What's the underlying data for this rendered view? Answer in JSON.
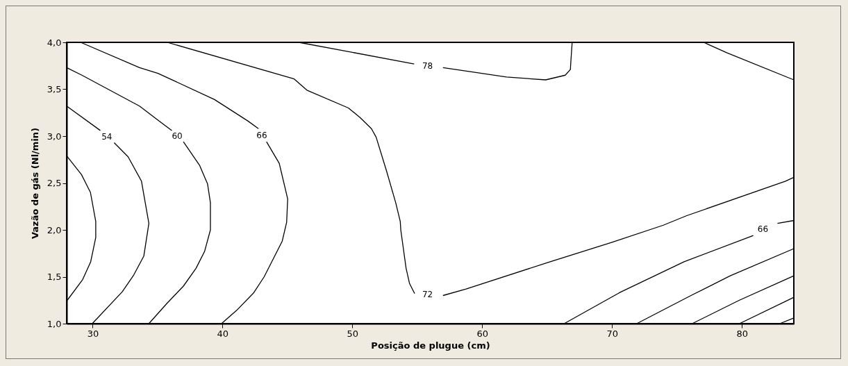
{
  "chart_data": {
    "type": "line",
    "xlabel": "Posição de plugue (cm)",
    "ylabel": "Vazão de gás (Nl/min)",
    "xlim": [
      28,
      84
    ],
    "ylim": [
      1,
      4
    ],
    "xticks": [
      30,
      40,
      50,
      60,
      70,
      80
    ],
    "yticks": [
      {
        "value": 1,
        "label": "1,0"
      },
      {
        "value": 1.5,
        "label": "1,5"
      },
      {
        "value": 2,
        "label": "2,0"
      },
      {
        "value": 2.5,
        "label": "2,5"
      },
      {
        "value": 3,
        "label": "3,0"
      },
      {
        "value": 3.5,
        "label": "3,5"
      },
      {
        "value": 4,
        "label": "4,0"
      }
    ],
    "grid": false,
    "marker": "none",
    "line_style": "solid",
    "series": [
      {
        "color": "#000000",
        "x": [
          28,
          29.14,
          29.83,
          30.24,
          30.24,
          29.85,
          29.23,
          28.05
        ],
        "values": [
          2.79,
          2.59,
          2.4,
          2.09,
          1.92,
          1.66,
          1.47,
          1.25
        ]
      },
      {
        "name": "54",
        "color": "#000000",
        "x": [
          28,
          30.59,
          31.09,
          31.66,
          32.73,
          33.76,
          34.33,
          33.94,
          33.17,
          32.28,
          29.97
        ],
        "values": [
          3.32,
          3.06,
          null,
          2.93,
          2.78,
          2.52,
          2.07,
          1.72,
          1.52,
          1.34,
          1.0
        ]
      },
      {
        "name": "60",
        "color": "#000000",
        "x": [
          28,
          29.17,
          33.61,
          35.03,
          36.1,
          36.51,
          36.99,
          38.23,
          38.85,
          39.07,
          39.07,
          38.62,
          37.96,
          36.99,
          35.75,
          34.33
        ],
        "values": [
          3.73,
          3.65,
          3.32,
          3.17,
          3.06,
          null,
          2.94,
          2.69,
          2.49,
          2.29,
          2.0,
          1.77,
          1.59,
          1.4,
          1.22,
          1.0
        ]
      },
      {
        "name": "66",
        "color": "#000000",
        "x": [
          29.08,
          33.61,
          35.03,
          39.39,
          41.97,
          42.77,
          43.03,
          43.39,
          44.37,
          45.02,
          44.94,
          44.6,
          43.21,
          42.41,
          41.08,
          39.92
        ],
        "values": [
          4.0,
          3.73,
          3.67,
          3.39,
          3.16,
          3.08,
          null,
          2.94,
          2.71,
          2.33,
          2.08,
          1.88,
          1.5,
          1.33,
          1.14,
          1.0
        ]
      },
      {
        "name": "72",
        "color": "#000000",
        "x": [
          35.75,
          45.52,
          46.5,
          49.7,
          50.58,
          51.47,
          51.83,
          52.63,
          53.34,
          53.69,
          53.73,
          54.14,
          54.4,
          54.8,
          55.79,
          56.98,
          58.76,
          65.24,
          70.04,
          73.95,
          75.72,
          83.36,
          84
        ],
        "values": [
          4.0,
          3.61,
          3.49,
          3.3,
          3.2,
          3.08,
          2.99,
          2.63,
          2.29,
          2.09,
          2.0,
          1.59,
          1.43,
          1.32,
          null,
          1.3,
          1.37,
          1.66,
          1.87,
          2.05,
          2.15,
          2.52,
          2.56
        ]
      },
      {
        "name": "78",
        "color": "#000000",
        "x": [
          45.88,
          54.76,
          55.79,
          56.98,
          61.87,
          64.89,
          66.4,
          66.79,
          66.84,
          66.93
        ],
        "values": [
          4.0,
          3.77,
          null,
          3.73,
          3.63,
          3.6,
          3.65,
          3.71,
          3.82,
          4.0
        ]
      },
      {
        "color": "#000000",
        "x": [
          77.06,
          78.83,
          84
        ],
        "values": [
          4.0,
          3.89,
          3.6
        ]
      },
      {
        "name": "66",
        "color": "#000000",
        "x": [
          66.31,
          70.57,
          75.55,
          80.88,
          81.62,
          82.74,
          84
        ],
        "values": [
          1.0,
          1.33,
          1.66,
          1.94,
          null,
          2.07,
          2.1
        ]
      },
      {
        "color": "#000000",
        "x": [
          71.9,
          76.08,
          79.1,
          84
        ],
        "values": [
          1.0,
          1.3,
          1.51,
          1.8
        ]
      },
      {
        "color": "#000000",
        "x": [
          76.17,
          79.81,
          84
        ],
        "values": [
          1.0,
          1.25,
          1.51
        ]
      },
      {
        "color": "#000000",
        "x": [
          79.81,
          84
        ],
        "values": [
          1.0,
          1.28
        ]
      },
      {
        "color": "#000000",
        "x": [
          82.92,
          84
        ],
        "values": [
          1.0,
          1.06
        ]
      }
    ]
  }
}
